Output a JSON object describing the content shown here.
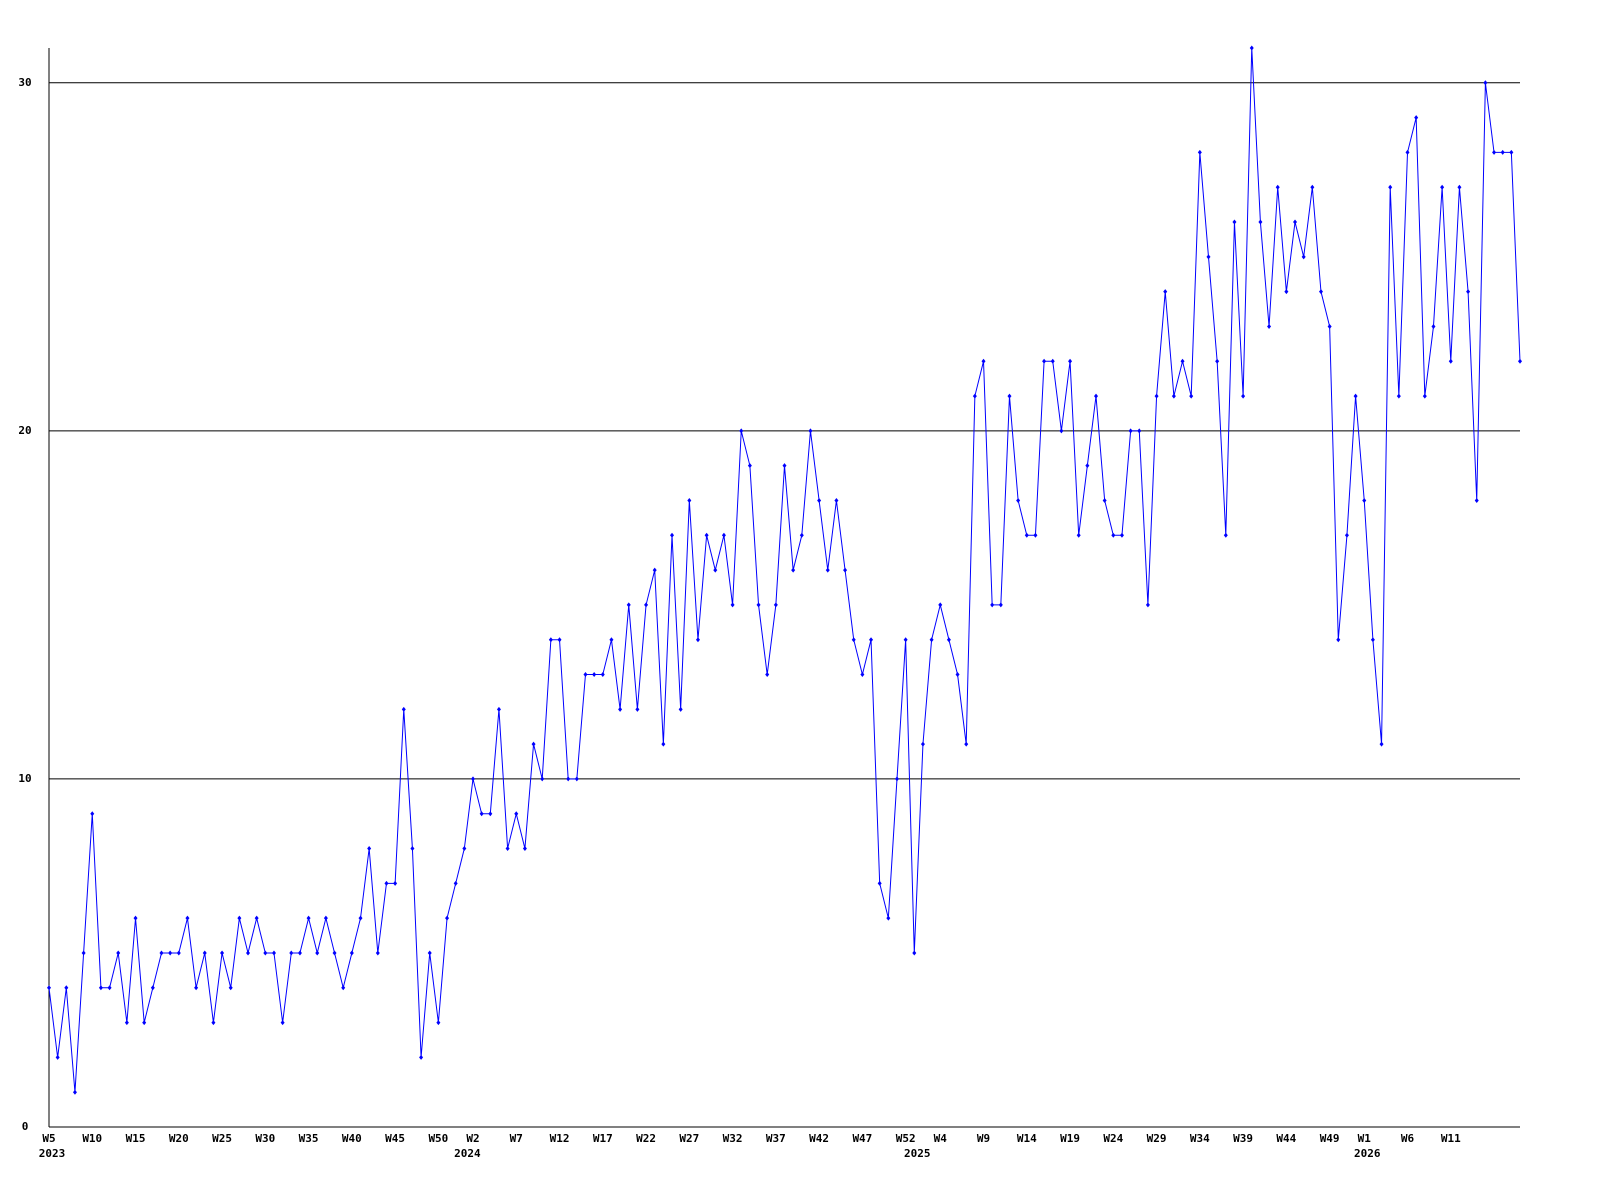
{
  "chart_data": {
    "type": "line",
    "categories": [
      "W5",
      null,
      null,
      null,
      null,
      "W10",
      null,
      null,
      null,
      null,
      "W15",
      null,
      null,
      null,
      null,
      "W20",
      null,
      null,
      null,
      null,
      "W25",
      null,
      null,
      null,
      null,
      "W30",
      null,
      null,
      null,
      null,
      "W35",
      null,
      null,
      null,
      null,
      "W40",
      null,
      null,
      null,
      null,
      "W45",
      null,
      null,
      null,
      null,
      "W50",
      null,
      null,
      null,
      "W2",
      null,
      null,
      null,
      null,
      "W7",
      null,
      null,
      null,
      null,
      "W12",
      null,
      null,
      null,
      null,
      "W17",
      null,
      null,
      null,
      null,
      "W22",
      null,
      null,
      null,
      null,
      "W27",
      null,
      null,
      null,
      null,
      "W32",
      null,
      null,
      null,
      null,
      "W37",
      null,
      null,
      null,
      null,
      "W42",
      null,
      null,
      null,
      null,
      "W47",
      null,
      null,
      null,
      null,
      "W52",
      null,
      null,
      null,
      "W4",
      null,
      null,
      null,
      null,
      "W9",
      null,
      null,
      null,
      null,
      "W14",
      null,
      null,
      null,
      null,
      "W19",
      null,
      null,
      null,
      null,
      "W24",
      null,
      null,
      null,
      null,
      "W29",
      null,
      null,
      null,
      null,
      "W34",
      null,
      null,
      null,
      null,
      "W39",
      null,
      null,
      null,
      null,
      "W44",
      null,
      null,
      null,
      null,
      "W49",
      null,
      null,
      null,
      "W1",
      null,
      null,
      null,
      null,
      "W6",
      null,
      null,
      null,
      null,
      "W11",
      null,
      null,
      null,
      null,
      null,
      null,
      null,
      null
    ],
    "category_years": [
      "2023",
      null,
      null,
      null,
      null,
      null,
      null,
      null,
      null,
      null,
      null,
      null,
      null,
      null,
      null,
      null,
      null,
      null,
      null,
      null,
      null,
      null,
      null,
      null,
      null,
      null,
      null,
      null,
      null,
      null,
      null,
      null,
      null,
      null,
      null,
      null,
      null,
      null,
      null,
      null,
      null,
      null,
      null,
      null,
      null,
      null,
      null,
      null,
      "2024",
      null,
      null,
      null,
      null,
      null,
      null,
      null,
      null,
      null,
      null,
      null,
      null,
      null,
      null,
      null,
      null,
      null,
      null,
      null,
      null,
      null,
      null,
      null,
      null,
      null,
      null,
      null,
      null,
      null,
      null,
      null,
      null,
      null,
      null,
      null,
      null,
      null,
      null,
      null,
      null,
      null,
      null,
      null,
      null,
      null,
      null,
      null,
      null,
      null,
      null,
      null,
      "2025",
      null,
      null,
      null,
      null,
      null,
      null,
      null,
      null,
      null,
      null,
      null,
      null,
      null,
      null,
      null,
      null,
      null,
      null,
      null,
      null,
      null,
      null,
      null,
      null,
      null,
      null,
      null,
      null,
      null,
      null,
      null,
      null,
      null,
      null,
      null,
      null,
      null,
      null,
      null,
      null,
      null,
      null,
      null,
      null,
      null,
      null,
      null,
      null,
      null,
      null,
      null,
      "2026",
      null,
      null,
      null,
      null,
      null,
      null,
      null,
      null,
      null,
      null,
      null,
      null,
      null,
      null,
      null,
      null,
      null,
      null
    ],
    "series": [
      {
        "color": "#0000ff",
        "values": [
          4,
          2,
          4,
          1,
          5,
          9,
          4,
          4,
          5,
          3,
          6,
          3,
          4,
          5,
          5,
          5,
          6,
          4,
          5,
          3,
          5,
          4,
          6,
          5,
          6,
          5,
          5,
          3,
          5,
          5,
          6,
          5,
          6,
          5,
          4,
          5,
          6,
          8,
          5,
          7,
          7,
          12,
          8,
          2,
          5,
          3,
          6,
          7,
          8,
          10,
          9,
          9,
          12,
          8,
          9,
          8,
          11,
          10,
          14,
          14,
          10,
          10,
          13,
          13,
          13,
          14,
          12,
          15,
          12,
          15,
          16,
          11,
          17,
          12,
          18,
          14,
          17,
          16,
          17,
          15,
          20,
          19,
          15,
          13,
          15,
          19,
          16,
          17,
          20,
          18,
          16,
          18,
          16,
          14,
          13,
          14,
          7,
          6,
          10,
          14,
          5,
          11,
          14,
          15,
          14,
          13,
          11,
          21,
          22,
          15,
          15,
          21,
          18,
          17,
          17,
          22,
          22,
          20,
          22,
          17,
          19,
          21,
          18,
          17,
          17,
          20,
          20,
          15,
          21,
          24,
          21,
          22,
          21,
          28,
          25,
          22,
          17,
          26,
          21,
          31,
          26,
          23,
          27,
          24,
          26,
          25,
          27,
          24,
          23,
          14,
          17,
          21,
          18,
          14,
          11,
          27,
          21,
          28,
          29,
          21,
          23,
          27,
          22,
          27,
          24,
          18,
          30,
          28,
          28,
          28,
          22
        ]
      }
    ],
    "ylim": [
      0,
      31
    ],
    "yticks": [
      0,
      10,
      20,
      30
    ],
    "grid": true
  }
}
